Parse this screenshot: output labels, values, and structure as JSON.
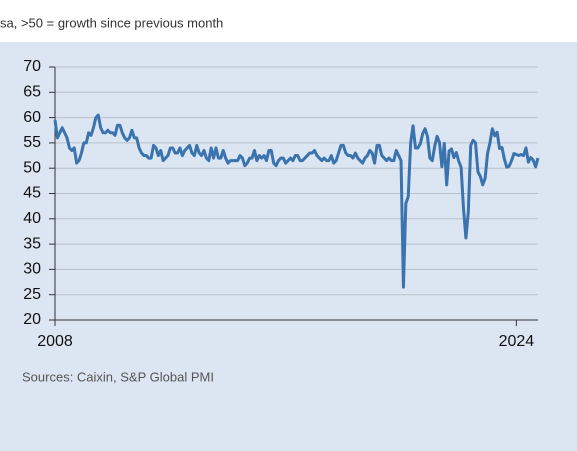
{
  "chart_data": {
    "type": "line",
    "subtitle": "sa, >50 = growth since previous month",
    "source": "Sources: Caixin, S&P Global PMI",
    "categories": [
      "2008",
      null,
      null,
      null,
      null,
      null,
      null,
      null,
      null,
      null,
      null,
      null,
      null,
      null,
      null,
      null,
      null,
      null,
      null,
      null,
      null,
      null,
      null,
      null,
      null,
      null,
      null,
      null,
      null,
      null,
      null,
      null,
      null,
      null,
      null,
      null,
      null,
      null,
      null,
      null,
      null,
      null,
      null,
      null,
      null,
      null,
      null,
      null,
      null,
      null,
      null,
      null,
      null,
      null,
      null,
      null,
      null,
      null,
      null,
      null,
      null,
      null,
      null,
      null,
      null,
      null,
      null,
      null,
      null,
      null,
      null,
      null,
      null,
      null,
      null,
      null,
      null,
      null,
      null,
      null,
      null,
      null,
      null,
      null,
      null,
      null,
      null,
      null,
      null,
      null,
      null,
      null,
      null,
      null,
      null,
      null,
      null,
      null,
      null,
      null,
      null,
      null,
      null,
      null,
      null,
      null,
      null,
      null,
      null,
      null,
      null,
      null,
      null,
      null,
      null,
      null,
      null,
      null,
      null,
      null,
      null,
      null,
      null,
      null,
      null,
      null,
      null,
      null,
      null,
      null,
      null,
      null,
      null,
      null,
      null,
      null,
      null,
      null,
      null,
      null,
      null,
      null,
      null,
      null,
      null,
      null,
      null,
      null,
      null,
      null,
      null,
      null,
      null,
      null,
      null,
      null,
      null,
      null,
      null,
      null,
      null,
      null,
      null,
      null,
      null,
      null,
      null,
      null,
      null,
      null,
      null,
      null,
      null,
      null,
      null,
      null,
      null,
      null,
      null,
      null,
      null,
      null,
      null,
      null,
      null,
      null,
      null,
      null,
      null,
      null,
      null,
      null,
      "2024",
      null,
      null,
      null,
      null,
      null,
      null,
      null,
      null,
      null
    ],
    "series": [
      {
        "color": "#3a73ad",
        "values": [
          59.5,
          56,
          57,
          58,
          57,
          56,
          54,
          53.5,
          54,
          51,
          51.5,
          53,
          55,
          55,
          57,
          56.5,
          58,
          60,
          60.5,
          58,
          57,
          57,
          57.5,
          57,
          57,
          56.5,
          58.5,
          58.5,
          57,
          56,
          55.5,
          56,
          57.5,
          56,
          56,
          54,
          53,
          52.5,
          52.5,
          52,
          52,
          54.5,
          54,
          52.5,
          53.5,
          51.5,
          52,
          52.5,
          54,
          54,
          53,
          53,
          54,
          52.5,
          53.5,
          54,
          54.5,
          53,
          52.5,
          54.5,
          53,
          52.5,
          53.5,
          52,
          51.5,
          54,
          52,
          54,
          52,
          52,
          53.5,
          52,
          51,
          51.5,
          51.5,
          51.5,
          51.5,
          52.5,
          52,
          50.5,
          51,
          52,
          52,
          53.5,
          51.5,
          52.5,
          52,
          52.5,
          51.5,
          53.5,
          53.5,
          51,
          50.5,
          51.5,
          52,
          52,
          51,
          51.5,
          52,
          51.5,
          52.5,
          52.5,
          51.5,
          51.5,
          52,
          52.5,
          53,
          53,
          53.5,
          52.5,
          52,
          51.5,
          52,
          51.5,
          51.5,
          52.5,
          51,
          51.5,
          53,
          54.5,
          54.5,
          53,
          52.5,
          52.5,
          52,
          53,
          52,
          51.5,
          51,
          52,
          52.5,
          53.5,
          53,
          51,
          54.5,
          54.5,
          52.5,
          52,
          51.5,
          52,
          51.5,
          51.5,
          53.5,
          52.5,
          51.5,
          26.5,
          43,
          44.4,
          55,
          58.4,
          54,
          54,
          54.8,
          56.8,
          57.8,
          56.3,
          52,
          51.5,
          54.3,
          56.3,
          55.1,
          50.3,
          54.9,
          46.7,
          53.4,
          53.8,
          52.1,
          53.1,
          51.4,
          50.2,
          42,
          36.2,
          41.4,
          54.5,
          55.5,
          55,
          49.3,
          48.4,
          46.7,
          48,
          52.9,
          55,
          57.8,
          56.4,
          57.1,
          53.9,
          54.1,
          51.8,
          50.2,
          50.4,
          51.5,
          52.9,
          52.7,
          52.5,
          52.7,
          52.5,
          54,
          51.2,
          52.1,
          51.6,
          50.3,
          52
        ]
      }
    ],
    "ylim": [
      20,
      70
    ],
    "yticks": [
      20,
      25,
      30,
      35,
      40,
      45,
      50,
      55,
      60,
      65,
      70
    ],
    "grid": true
  }
}
